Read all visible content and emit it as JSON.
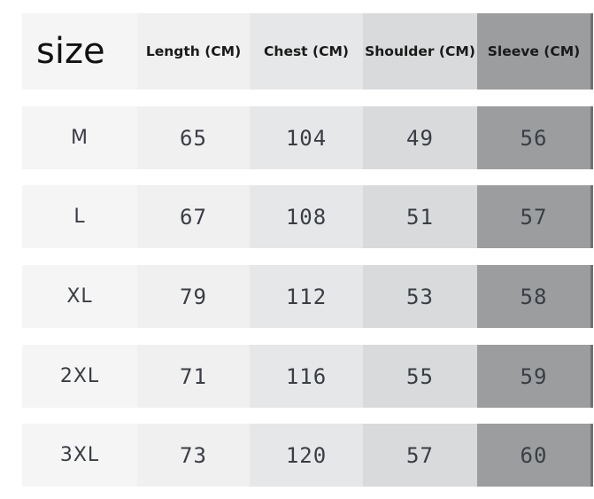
{
  "headers": [
    "size",
    "Length (CM)",
    "Chest (CM)",
    "Shoulder (CM)",
    "Sleeve (CM)"
  ],
  "rows": [
    [
      "M",
      "65",
      "104",
      "49",
      "56"
    ],
    [
      "L",
      "67",
      "108",
      "51",
      "57"
    ],
    [
      "XL",
      "79",
      "112",
      "53",
      "58"
    ],
    [
      "2XL",
      "71",
      "116",
      "55",
      "59"
    ],
    [
      "3XL",
      "73",
      "120",
      "57",
      "60"
    ]
  ],
  "colors": {
    "text": "#3a3d44",
    "col_shades": [
      "#f5f5f6",
      "#f0f0f1",
      "#e6e7e8",
      "#d8dadc",
      "#9b9d9f"
    ]
  }
}
